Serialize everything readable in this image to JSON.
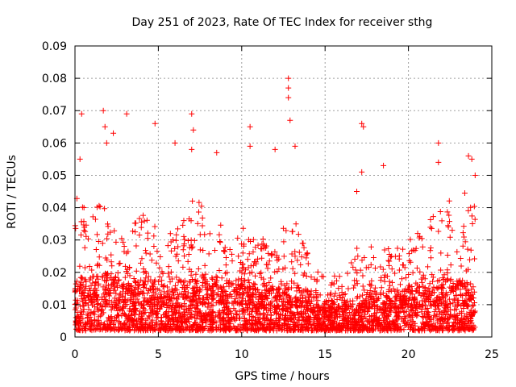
{
  "chart_data": {
    "type": "scatter",
    "title": "Day 251 of 2023, Rate Of TEC Index for receiver sthg",
    "xlabel": "GPS time / hours",
    "ylabel": "ROTI / TECUs",
    "xlim": [
      0,
      25
    ],
    "ylim": [
      0,
      0.09
    ],
    "xticks": [
      0,
      5,
      10,
      15,
      20,
      25
    ],
    "yticks": [
      0,
      0.01,
      0.02,
      0.03,
      0.04,
      0.05,
      0.06,
      0.07,
      0.08,
      0.09
    ],
    "xtick_labels": [
      "0",
      "5",
      "10",
      "15",
      "20",
      "25"
    ],
    "ytick_labels": [
      "0",
      "0.01",
      "0.02",
      "0.03",
      "0.04",
      "0.05",
      "0.06",
      "0.07",
      "0.08",
      "0.09"
    ],
    "grid": true,
    "marker": "+",
    "color": "#ff0000",
    "series": [
      {
        "name": "ROTI",
        "x_range": [
          0,
          24
        ],
        "envelope": {
          "hours": [
            0,
            1,
            2,
            3,
            4,
            5,
            6,
            7,
            8,
            9,
            10,
            11,
            12,
            13,
            14,
            15,
            16,
            17,
            18,
            19,
            20,
            21,
            22,
            23,
            24
          ],
          "median": [
            0.01,
            0.011,
            0.011,
            0.009,
            0.01,
            0.01,
            0.009,
            0.01,
            0.011,
            0.01,
            0.01,
            0.009,
            0.009,
            0.01,
            0.008,
            0.006,
            0.006,
            0.007,
            0.008,
            0.008,
            0.009,
            0.009,
            0.01,
            0.01,
            0.009
          ],
          "upper": [
            0.045,
            0.04,
            0.042,
            0.03,
            0.043,
            0.032,
            0.032,
            0.045,
            0.04,
            0.035,
            0.035,
            0.03,
            0.032,
            0.04,
            0.025,
            0.018,
            0.02,
            0.03,
            0.03,
            0.028,
            0.03,
            0.035,
            0.04,
            0.045,
            0.045
          ]
        },
        "outliers": [
          {
            "x": 0.4,
            "y": 0.069
          },
          {
            "x": 0.3,
            "y": 0.055
          },
          {
            "x": 1.7,
            "y": 0.07
          },
          {
            "x": 1.8,
            "y": 0.065
          },
          {
            "x": 1.9,
            "y": 0.06
          },
          {
            "x": 2.3,
            "y": 0.063
          },
          {
            "x": 3.1,
            "y": 0.069
          },
          {
            "x": 4.8,
            "y": 0.066
          },
          {
            "x": 6.0,
            "y": 0.06
          },
          {
            "x": 7.0,
            "y": 0.069
          },
          {
            "x": 7.1,
            "y": 0.064
          },
          {
            "x": 7.0,
            "y": 0.058
          },
          {
            "x": 8.5,
            "y": 0.057
          },
          {
            "x": 10.5,
            "y": 0.065
          },
          {
            "x": 10.5,
            "y": 0.059
          },
          {
            "x": 12.0,
            "y": 0.058
          },
          {
            "x": 12.8,
            "y": 0.08
          },
          {
            "x": 12.8,
            "y": 0.077
          },
          {
            "x": 12.8,
            "y": 0.074
          },
          {
            "x": 12.9,
            "y": 0.067
          },
          {
            "x": 13.2,
            "y": 0.059
          },
          {
            "x": 17.2,
            "y": 0.066
          },
          {
            "x": 17.3,
            "y": 0.065
          },
          {
            "x": 17.2,
            "y": 0.051
          },
          {
            "x": 16.9,
            "y": 0.045
          },
          {
            "x": 18.5,
            "y": 0.053
          },
          {
            "x": 21.8,
            "y": 0.06
          },
          {
            "x": 21.8,
            "y": 0.054
          },
          {
            "x": 23.6,
            "y": 0.056
          },
          {
            "x": 23.8,
            "y": 0.055
          },
          {
            "x": 24.0,
            "y": 0.05
          }
        ]
      }
    ]
  }
}
